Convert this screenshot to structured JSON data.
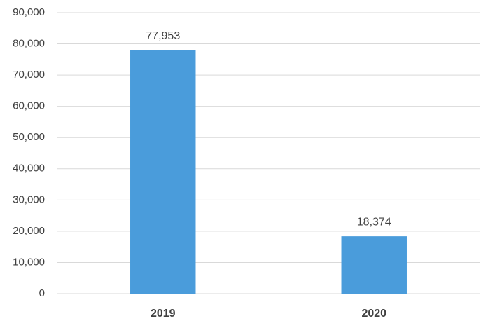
{
  "chart_data": {
    "type": "bar",
    "categories": [
      "2019",
      "2020"
    ],
    "values": [
      77953,
      18374
    ],
    "value_labels": [
      "77,953",
      "18,374"
    ],
    "color": "#4a9cdb",
    "ylim": [
      0,
      90000
    ],
    "yticks": [
      0,
      {
        "value": 10000,
        "label": "10,000"
      },
      {
        "value": 20000,
        "label": "20,000"
      },
      {
        "value": 30000,
        "label": "30,000"
      },
      {
        "value": 40000,
        "label": "40,000"
      },
      {
        "value": 50000,
        "label": "50,000"
      },
      {
        "value": 60000,
        "label": "60,000"
      },
      {
        "value": 70000,
        "label": "70,000"
      },
      {
        "value": 80000,
        "label": "80,000"
      },
      {
        "value": 90000,
        "label": "90,000"
      }
    ],
    "grid": true
  }
}
